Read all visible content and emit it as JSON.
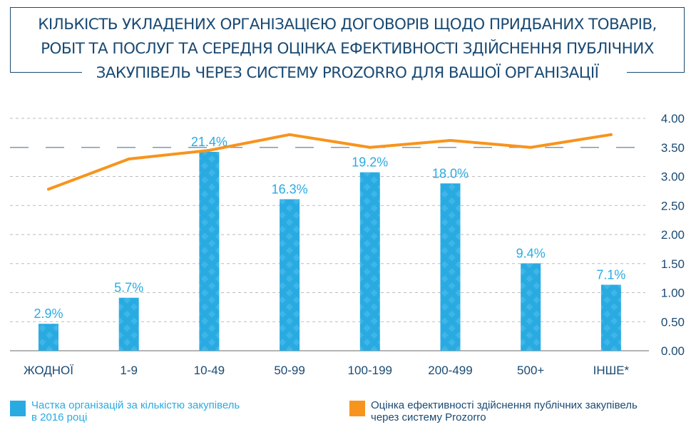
{
  "title": {
    "lines": [
      "КІЛЬКІСТЬ УКЛАДЕНИХ ОРГАНІЗАЦІЄЮ ДОГОВОРІВ ЩОДО ПРИДБАНИХ ТОВАРІВ,",
      "РОБІТ ТА ПОСЛУГ ТА СЕРЕДНЯ ОЦІНКА ЕФЕКТИВНОСТІ ЗДІЙСНЕННЯ ПУБЛІЧНИХ",
      "ЗАКУПІВЕЛЬ ЧЕРЕЗ СИСТЕМУ PROZORRO ДЛЯ ВАШОЇ ОРГАНІЗАЦІЇ"
    ]
  },
  "colors": {
    "bar": "#29abe2",
    "bar_pattern": "#59c3ee",
    "line": "#f7941d",
    "axis_text": "#1a4a73",
    "title": "#1a4a73",
    "grid": "#bbbbbb",
    "reference": "#7a9ab3"
  },
  "chart_data": {
    "type": "bar",
    "categories": [
      "ЖОДНОЇ",
      "1-9",
      "10-49",
      "50-99",
      "100-199",
      "200-499",
      "500+",
      "ІНШЕ*"
    ],
    "series": [
      {
        "name": "Частка організацій за кількістю закупівель в 2016 році",
        "type": "bar",
        "values": [
          2.9,
          5.7,
          21.4,
          16.3,
          19.2,
          18.0,
          9.4,
          7.1
        ],
        "labels": [
          "2.9%",
          "5.7%",
          "21.4%",
          "16.3%",
          "19.2%",
          "18.0%",
          "9.4%",
          "7.1%"
        ]
      },
      {
        "name": "Оцінка ефективності здійснення публічних закупівель через систему Prozorro",
        "type": "line",
        "values": [
          2.78,
          3.3,
          3.45,
          3.72,
          3.5,
          3.62,
          3.5,
          3.72
        ]
      }
    ],
    "bar_scale_max": 25,
    "y_right": {
      "range": [
        0,
        4
      ],
      "ticks": [
        "4.00",
        "3.50",
        "3.00",
        "2.50",
        "2.00",
        "1.50",
        "1.00",
        "0.50",
        "0.00"
      ],
      "tick_values": [
        4.0,
        3.5,
        3.0,
        2.5,
        2.0,
        1.5,
        1.0,
        0.5,
        0.0
      ]
    },
    "reference_line": 3.5,
    "grid": true
  },
  "legend": {
    "bar_label_line1": "Частка організацій за кількістю закупівель",
    "bar_label_line2": "в 2016 році",
    "line_label_line1": "Оцінка ефективності здійснення публічних закупівель",
    "line_label_line2": "через систему Prozorro"
  }
}
